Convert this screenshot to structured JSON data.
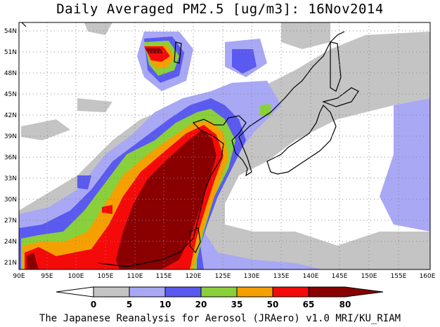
{
  "title": "Daily Averaged PM2.5 [ug/m3]: 16Nov2014",
  "footer": "The Japanese Reanalysis for Aerosol (JRAero) v1.0 MRI/KU_RIAM",
  "lon_labels": [
    "90E",
    "95E",
    "100E",
    "105E",
    "110E",
    "115E",
    "120E",
    "125E",
    "130E",
    "135E",
    "140E",
    "145E",
    "150E",
    "155E",
    "160E"
  ],
  "lat_labels": [
    "21N",
    "24N",
    "27N",
    "30N",
    "33N",
    "36N",
    "39N",
    "42N",
    "45N",
    "48N",
    "51N",
    "54N"
  ],
  "colorbar": {
    "ticks": [
      "0",
      "5",
      "10",
      "20",
      "35",
      "50",
      "65",
      "80"
    ],
    "colors": [
      "#ffffff",
      "#c4c4c4",
      "#a8a8f5",
      "#5a5af0",
      "#8ad03a",
      "#f5a000",
      "#f50a0a",
      "#8a0000"
    ]
  },
  "legend_levels": [
    {
      "range": "0-5",
      "color": "#ffffff"
    },
    {
      "range": "5-10",
      "color": "#c4c4c4"
    },
    {
      "range": "10-20",
      "color": "#a8a8f5"
    },
    {
      "range": "20-35",
      "color": "#5a5af0"
    },
    {
      "range": "35-50",
      "color": "#8ad03a"
    },
    {
      "range": "50-65",
      "color": "#f5a000"
    },
    {
      "range": "65-80",
      "color": "#f50a0a"
    },
    {
      "range": ">80",
      "color": "#8a0000"
    }
  ]
}
